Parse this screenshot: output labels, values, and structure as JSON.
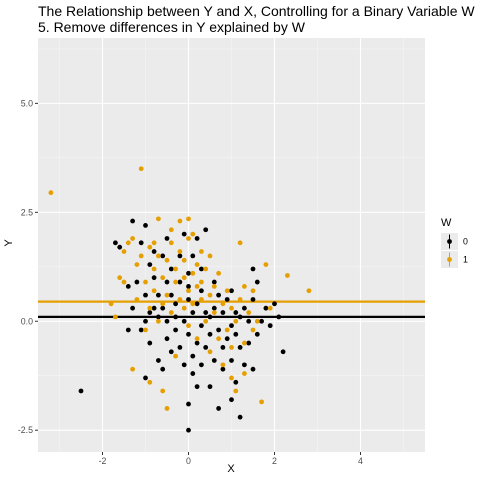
{
  "chart_data": {
    "type": "scatter",
    "title_lines": [
      "The Relationship between Y and X, Controlling for a Binary Variable W",
      "5. Remove differences in Y explained by W"
    ],
    "xlabel": "X",
    "ylabel": "Y",
    "xlim": [
      -3.5,
      5.5
    ],
    "ylim": [
      -3.0,
      6.5
    ],
    "x_ticks": [
      -2,
      0,
      2,
      4
    ],
    "x_tick_labels": [
      "-2",
      "0",
      "2",
      "4"
    ],
    "y_ticks": [
      -2.5,
      0.0,
      2.5,
      5.0
    ],
    "y_tick_labels": [
      "-2.5",
      "0.0",
      "2.5",
      "5.0"
    ],
    "grid": true,
    "legend": {
      "title": "W",
      "position": "right",
      "entries": [
        {
          "label": "0",
          "color": "#000000"
        },
        {
          "label": "1",
          "color": "#E69F00"
        }
      ]
    },
    "hlines": [
      {
        "group": "0",
        "y": 0.1,
        "color": "#000000"
      },
      {
        "group": "1",
        "y": 0.45,
        "color": "#E69F00"
      }
    ],
    "series": [
      {
        "name": "0",
        "color": "#000000",
        "points": [
          [
            -2.5,
            -1.6
          ],
          [
            -1.7,
            1.8
          ],
          [
            -1.6,
            1.7
          ],
          [
            -1.4,
            -0.2
          ],
          [
            -1.4,
            0.8
          ],
          [
            -1.3,
            0.3
          ],
          [
            -1.3,
            2.3
          ],
          [
            -1.2,
            0.9
          ],
          [
            -1.1,
            1.8
          ],
          [
            -1.1,
            -0.2
          ],
          [
            -1.0,
            2.2
          ],
          [
            -1.0,
            0.6
          ],
          [
            -1.0,
            -1.3
          ],
          [
            -1.0,
            0.0
          ],
          [
            -0.9,
            1.3
          ],
          [
            -0.9,
            -0.5
          ],
          [
            -0.9,
            0.2
          ],
          [
            -0.8,
            1.6
          ],
          [
            -0.8,
            0.3
          ],
          [
            -0.8,
            1.0
          ],
          [
            -0.7,
            0.1
          ],
          [
            -0.7,
            -0.9
          ],
          [
            -0.7,
            0.6
          ],
          [
            -0.6,
            1.5
          ],
          [
            -0.6,
            0.3
          ],
          [
            -0.6,
            -1.1
          ],
          [
            -0.5,
            1.9
          ],
          [
            -0.5,
            0.9
          ],
          [
            -0.5,
            0.0
          ],
          [
            -0.5,
            -0.4
          ],
          [
            -0.4,
            0.6
          ],
          [
            -0.4,
            1.2
          ],
          [
            -0.4,
            -0.7
          ],
          [
            -0.3,
            0.1
          ],
          [
            -0.3,
            0.4
          ],
          [
            -0.3,
            -0.2
          ],
          [
            -0.2,
            0.9
          ],
          [
            -0.2,
            1.5
          ],
          [
            -0.2,
            -0.6
          ],
          [
            -0.1,
            0.0
          ],
          [
            -0.1,
            -1.0
          ],
          [
            -0.1,
            2.0
          ],
          [
            0.0,
            0.8
          ],
          [
            0.0,
            -0.3
          ],
          [
            0.0,
            1.1
          ],
          [
            0.0,
            -1.9
          ],
          [
            0.0,
            0.5
          ],
          [
            0.0,
            -2.5
          ],
          [
            0.1,
            0.2
          ],
          [
            0.1,
            -1.2
          ],
          [
            0.1,
            1.5
          ],
          [
            0.1,
            -0.8
          ],
          [
            0.2,
            0.4
          ],
          [
            0.2,
            1.9
          ],
          [
            0.2,
            -0.5
          ],
          [
            0.2,
            -1.5
          ],
          [
            0.3,
            0.7
          ],
          [
            0.3,
            -0.1
          ],
          [
            0.3,
            1.2
          ],
          [
            0.3,
            -1.0
          ],
          [
            0.4,
            0.2
          ],
          [
            0.4,
            -0.6
          ],
          [
            0.4,
            2.1
          ],
          [
            0.5,
            -1.5
          ],
          [
            0.5,
            0.1
          ],
          [
            0.5,
            -0.3
          ],
          [
            0.6,
            0.9
          ],
          [
            0.6,
            -0.9
          ],
          [
            0.6,
            0.3
          ],
          [
            0.7,
            -0.2
          ],
          [
            0.7,
            -2.0
          ],
          [
            0.7,
            0.6
          ],
          [
            0.8,
            -0.6
          ],
          [
            0.8,
            0.2
          ],
          [
            0.8,
            -1.1
          ],
          [
            0.9,
            -0.4
          ],
          [
            0.9,
            0.5
          ],
          [
            1.0,
            -0.1
          ],
          [
            1.0,
            -0.9
          ],
          [
            1.0,
            0.7
          ],
          [
            1.0,
            -1.8
          ],
          [
            1.1,
            -0.3
          ],
          [
            1.1,
            0.2
          ],
          [
            1.1,
            -1.4
          ],
          [
            1.2,
            -0.6
          ],
          [
            1.2,
            0.1
          ],
          [
            1.2,
            -2.2
          ],
          [
            1.3,
            -1.0
          ],
          [
            1.3,
            0.3
          ],
          [
            1.4,
            -0.5
          ],
          [
            1.4,
            0.0
          ],
          [
            1.5,
            -1.1
          ],
          [
            1.5,
            0.5
          ],
          [
            1.5,
            1.2
          ],
          [
            1.6,
            -0.3
          ],
          [
            1.6,
            0.9
          ],
          [
            1.7,
            0.0
          ],
          [
            1.8,
            0.3
          ],
          [
            1.9,
            -0.1
          ],
          [
            2.0,
            0.4
          ],
          [
            2.1,
            0.1
          ],
          [
            2.2,
            -0.7
          ]
        ]
      },
      {
        "name": "1",
        "color": "#E69F00",
        "points": [
          [
            -3.2,
            2.95
          ],
          [
            -1.8,
            0.4
          ],
          [
            -1.7,
            0.1
          ],
          [
            -1.6,
            1.0
          ],
          [
            -1.5,
            0.9
          ],
          [
            -1.5,
            1.6
          ],
          [
            -1.4,
            1.8
          ],
          [
            -1.3,
            1.9
          ],
          [
            -1.3,
            -1.1
          ],
          [
            -1.2,
            1.3
          ],
          [
            -1.2,
            0.5
          ],
          [
            -1.1,
            3.5
          ],
          [
            -1.1,
            1.5
          ],
          [
            -1.0,
            0.9
          ],
          [
            -1.0,
            -0.2
          ],
          [
            -0.9,
            1.7
          ],
          [
            -0.9,
            0.3
          ],
          [
            -0.9,
            -1.4
          ],
          [
            -0.8,
            1.2
          ],
          [
            -0.8,
            0.7
          ],
          [
            -0.8,
            1.8
          ],
          [
            -0.7,
            1.5
          ],
          [
            -0.7,
            0.0
          ],
          [
            -0.7,
            2.35
          ],
          [
            -0.6,
            1.0
          ],
          [
            -0.6,
            0.4
          ],
          [
            -0.6,
            -1.6
          ],
          [
            -0.5,
            1.4
          ],
          [
            -0.5,
            0.6
          ],
          [
            -0.5,
            -2.0
          ],
          [
            -0.4,
            1.8
          ],
          [
            -0.4,
            0.2
          ],
          [
            -0.4,
            2.1
          ],
          [
            -0.3,
            0.9
          ],
          [
            -0.3,
            1.2
          ],
          [
            -0.3,
            -0.8
          ],
          [
            -0.2,
            1.6
          ],
          [
            -0.2,
            0.5
          ],
          [
            -0.2,
            2.3
          ],
          [
            -0.1,
            1.0
          ],
          [
            -0.1,
            0.3
          ],
          [
            -0.1,
            1.4
          ],
          [
            0.0,
            2.35
          ],
          [
            0.0,
            0.7
          ],
          [
            0.0,
            1.9
          ],
          [
            0.0,
            -0.1
          ],
          [
            0.1,
            1.1
          ],
          [
            0.1,
            0.4
          ],
          [
            0.1,
            2.0
          ],
          [
            0.2,
            0.8
          ],
          [
            0.2,
            1.3
          ],
          [
            0.2,
            -0.4
          ],
          [
            0.3,
            1.6
          ],
          [
            0.3,
            0.5
          ],
          [
            0.3,
            0.9
          ],
          [
            0.4,
            0.0
          ],
          [
            0.4,
            1.2
          ],
          [
            0.5,
            0.6
          ],
          [
            0.5,
            -0.7
          ],
          [
            0.5,
            1.5
          ],
          [
            0.6,
            0.2
          ],
          [
            0.6,
            0.8
          ],
          [
            0.7,
            1.1
          ],
          [
            0.7,
            -0.4
          ],
          [
            0.8,
            0.4
          ],
          [
            0.8,
            -1.0
          ],
          [
            0.9,
            0.7
          ],
          [
            0.9,
            -0.2
          ],
          [
            1.0,
            -1.3
          ],
          [
            1.0,
            0.3
          ],
          [
            1.0,
            -0.6
          ],
          [
            1.1,
            0.0
          ],
          [
            1.1,
            -1.6
          ],
          [
            1.2,
            0.5
          ],
          [
            1.2,
            1.8
          ],
          [
            1.3,
            -0.5
          ],
          [
            1.3,
            0.8
          ],
          [
            1.3,
            -1.2
          ],
          [
            1.4,
            0.2
          ],
          [
            1.5,
            -0.2
          ],
          [
            1.5,
            0.7
          ],
          [
            1.6,
            0.0
          ],
          [
            1.7,
            -1.85
          ],
          [
            1.8,
            1.3
          ],
          [
            1.9,
            0.3
          ],
          [
            2.3,
            1.05
          ],
          [
            2.8,
            0.7
          ]
        ]
      }
    ]
  }
}
